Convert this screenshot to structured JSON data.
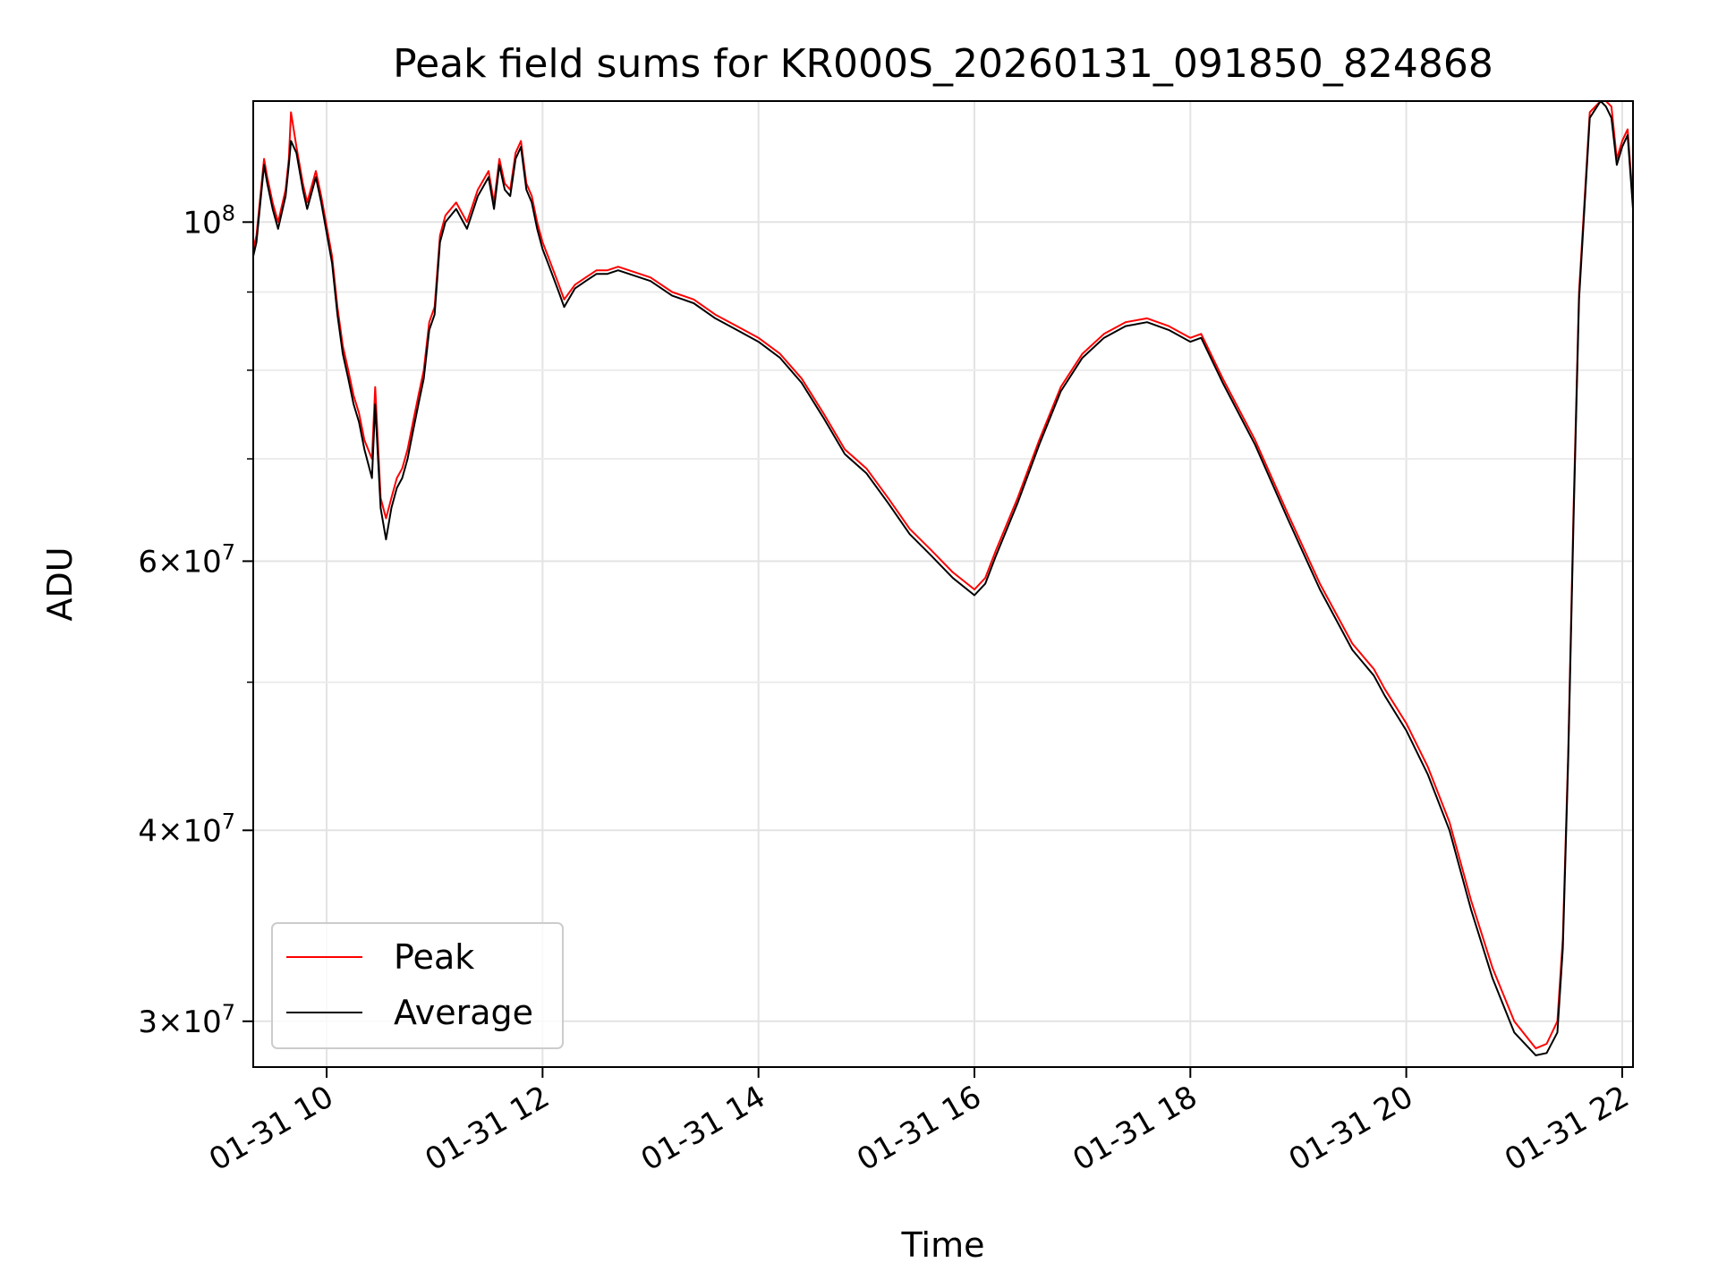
{
  "chart_data": {
    "type": "line",
    "title": "Peak field sums for KR000S_20260131_091850_824868",
    "xlabel": "Time",
    "ylabel": "ADU",
    "yscale": "log",
    "grid": true,
    "legend_position": "lower-left",
    "xlim_hours": [
      9.32,
      22.1
    ],
    "ylim": [
      28000000,
      120000000
    ],
    "x_ticks": [
      {
        "hour": 10,
        "label": "01-31 10"
      },
      {
        "hour": 12,
        "label": "01-31 12"
      },
      {
        "hour": 14,
        "label": "01-31 14"
      },
      {
        "hour": 16,
        "label": "01-31 16"
      },
      {
        "hour": 18,
        "label": "01-31 18"
      },
      {
        "hour": 20,
        "label": "01-31 20"
      },
      {
        "hour": 22,
        "label": "01-31 22"
      }
    ],
    "y_major_ticks": [
      {
        "value": 100000000,
        "base": "10",
        "exp": "8"
      },
      {
        "value": 60000000,
        "mant": "6",
        "base": "10",
        "exp": "7"
      },
      {
        "value": 40000000,
        "mant": "4",
        "base": "10",
        "exp": "7"
      },
      {
        "value": 30000000,
        "mant": "3",
        "base": "10",
        "exp": "7"
      }
    ],
    "y_minor_ticks": [
      90000000,
      80000000,
      70000000,
      50000000
    ],
    "series": [
      {
        "name": "Peak",
        "color": "#ff0000",
        "x": [
          9.32,
          9.35,
          9.42,
          9.45,
          9.5,
          9.55,
          9.62,
          9.65,
          9.67,
          9.72,
          9.78,
          9.82,
          9.9,
          9.95,
          10.05,
          10.1,
          10.15,
          10.2,
          10.25,
          10.3,
          10.35,
          10.42,
          10.45,
          10.5,
          10.55,
          10.6,
          10.65,
          10.7,
          10.75,
          10.8,
          10.85,
          10.9,
          10.95,
          11.0,
          11.05,
          11.1,
          11.2,
          11.3,
          11.4,
          11.5,
          11.55,
          11.6,
          11.65,
          11.7,
          11.75,
          11.8,
          11.85,
          11.9,
          11.95,
          12.0,
          12.05,
          12.1,
          12.15,
          12.2,
          12.3,
          12.4,
          12.5,
          12.6,
          12.7,
          12.8,
          13.0,
          13.2,
          13.4,
          13.6,
          13.8,
          14.0,
          14.2,
          14.4,
          14.6,
          14.8,
          15.0,
          15.2,
          15.4,
          15.6,
          15.8,
          16.0,
          16.1,
          16.2,
          16.4,
          16.6,
          16.8,
          17.0,
          17.2,
          17.4,
          17.6,
          17.8,
          18.0,
          18.1,
          18.3,
          18.6,
          18.9,
          19.2,
          19.5,
          19.7,
          19.8,
          20.0,
          20.2,
          20.4,
          20.6,
          20.8,
          21.0,
          21.2,
          21.3,
          21.4,
          21.45,
          21.5,
          21.55,
          21.6,
          21.7,
          21.8,
          21.85,
          21.9,
          21.95,
          22.0,
          22.05,
          22.1
        ],
        "values": [
          96000000,
          98000000,
          110000000,
          107000000,
          103000000,
          100000000,
          105000000,
          110000000,
          118000000,
          112000000,
          106000000,
          103000000,
          108000000,
          104000000,
          95000000,
          88000000,
          83000000,
          80000000,
          77000000,
          75000000,
          72000000,
          70000000,
          78000000,
          66000000,
          64000000,
          66000000,
          68000000,
          69000000,
          71000000,
          74000000,
          77000000,
          80000000,
          86000000,
          88000000,
          98000000,
          101000000,
          103000000,
          100000000,
          105000000,
          108000000,
          103000000,
          110000000,
          106000000,
          105000000,
          111000000,
          113000000,
          106000000,
          104000000,
          100000000,
          97000000,
          95000000,
          93000000,
          91000000,
          89000000,
          91000000,
          92000000,
          93000000,
          93000000,
          93500000,
          93000000,
          92000000,
          90000000,
          89000000,
          87000000,
          85500000,
          84000000,
          82000000,
          79000000,
          75000000,
          71000000,
          69000000,
          66000000,
          63000000,
          61000000,
          59000000,
          57500000,
          58500000,
          61000000,
          66000000,
          72000000,
          78000000,
          82000000,
          84500000,
          86000000,
          86500000,
          85500000,
          84000000,
          84500000,
          79000000,
          72000000,
          64500000,
          58000000,
          53000000,
          51000000,
          49500000,
          47000000,
          44000000,
          40500000,
          36000000,
          32500000,
          30000000,
          28800000,
          29000000,
          30000000,
          34000000,
          45000000,
          65000000,
          90000000,
          118000000,
          122000000,
          120000000,
          119000000,
          110000000,
          113000000,
          115000000,
          103000000
        ]
      },
      {
        "name": "Average",
        "color": "#000000",
        "x": [
          9.32,
          9.35,
          9.42,
          9.45,
          9.5,
          9.55,
          9.62,
          9.65,
          9.67,
          9.72,
          9.78,
          9.82,
          9.9,
          9.95,
          10.05,
          10.1,
          10.15,
          10.2,
          10.25,
          10.3,
          10.35,
          10.42,
          10.45,
          10.5,
          10.55,
          10.6,
          10.65,
          10.7,
          10.75,
          10.8,
          10.85,
          10.9,
          10.95,
          11.0,
          11.05,
          11.1,
          11.2,
          11.3,
          11.4,
          11.5,
          11.55,
          11.6,
          11.65,
          11.7,
          11.75,
          11.8,
          11.85,
          11.9,
          11.95,
          12.0,
          12.05,
          12.1,
          12.15,
          12.2,
          12.3,
          12.4,
          12.5,
          12.6,
          12.7,
          12.8,
          13.0,
          13.2,
          13.4,
          13.6,
          13.8,
          14.0,
          14.2,
          14.4,
          14.6,
          14.8,
          15.0,
          15.2,
          15.4,
          15.6,
          15.8,
          16.0,
          16.1,
          16.2,
          16.4,
          16.6,
          16.8,
          17.0,
          17.2,
          17.4,
          17.6,
          17.8,
          18.0,
          18.1,
          18.3,
          18.6,
          18.9,
          19.2,
          19.5,
          19.7,
          19.8,
          20.0,
          20.2,
          20.4,
          20.6,
          20.8,
          21.0,
          21.2,
          21.3,
          21.4,
          21.45,
          21.5,
          21.55,
          21.6,
          21.7,
          21.8,
          21.85,
          21.9,
          21.95,
          22.0,
          22.05,
          22.1
        ],
        "values": [
          95000000,
          97000000,
          109000000,
          106000000,
          102000000,
          99000000,
          104000000,
          109000000,
          113000000,
          111000000,
          105000000,
          102000000,
          107000000,
          103000000,
          94000000,
          87000000,
          82000000,
          79000000,
          76000000,
          74000000,
          71000000,
          68000000,
          76000000,
          65000000,
          62000000,
          65000000,
          67000000,
          68000000,
          70000000,
          73000000,
          76000000,
          79000000,
          85000000,
          87000000,
          97000000,
          100000000,
          102000000,
          99000000,
          104000000,
          107000000,
          102000000,
          109000000,
          105000000,
          104000000,
          110000000,
          112000000,
          105000000,
          103000000,
          99000000,
          96000000,
          94000000,
          92000000,
          90000000,
          88000000,
          90500000,
          91500000,
          92500000,
          92500000,
          93000000,
          92500000,
          91500000,
          89500000,
          88500000,
          86500000,
          85000000,
          83500000,
          81500000,
          78500000,
          74500000,
          70500000,
          68500000,
          65500000,
          62500000,
          60500000,
          58500000,
          57000000,
          58000000,
          60500000,
          65500000,
          71500000,
          77500000,
          81500000,
          84000000,
          85500000,
          86000000,
          85000000,
          83500000,
          84000000,
          78500000,
          71500000,
          64000000,
          57500000,
          52500000,
          50500000,
          49000000,
          46500000,
          43500000,
          40000000,
          35500000,
          32000000,
          29500000,
          28500000,
          28600000,
          29500000,
          33500000,
          44500000,
          64000000,
          89000000,
          117000000,
          121000000,
          119000000,
          117000000,
          109000000,
          112000000,
          114000000,
          102000000
        ]
      }
    ]
  }
}
